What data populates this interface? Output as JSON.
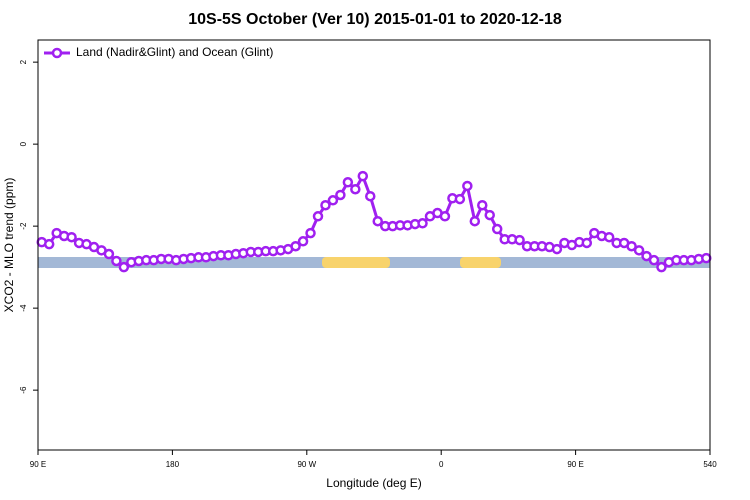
{
  "chart_data": {
    "type": "line",
    "title": "10S-5S October (Ver 10)   2015-01-01 to 2020-12-18",
    "xlabel": "Longitude (deg E)",
    "ylabel": "XCO2 - MLO trend (ppm)",
    "xlim": [
      90,
      540
    ],
    "ylim": [
      -7.46,
      2.54
    ],
    "xticks": [
      {
        "value": 90,
        "label": "90 E"
      },
      180,
      {
        "value": 270,
        "label": "90 W"
      },
      {
        "value": 360,
        "label": "0"
      },
      {
        "value": 450,
        "label": "90 E"
      },
      540
    ],
    "yticks": [
      2,
      0,
      -2,
      -4,
      -6
    ],
    "legend": "top-left",
    "x": [
      92.5,
      97.5,
      102.5,
      107.5,
      112.5,
      117.5,
      122.5,
      127.5,
      132.5,
      137.5,
      142.5,
      147.5,
      152.5,
      157.5,
      162.5,
      167.5,
      172.5,
      177.5,
      182.5,
      187.5,
      192.5,
      197.5,
      202.5,
      207.5,
      212.5,
      217.5,
      222.5,
      227.5,
      232.5,
      237.5,
      242.5,
      247.5,
      252.5,
      257.5,
      262.5,
      267.5,
      272.5,
      277.5,
      282.5,
      287.5,
      292.5,
      297.5,
      302.5,
      307.5,
      312.5,
      317.5,
      322.5,
      327.5,
      332.5,
      337.5,
      342.5,
      347.5,
      352.5,
      357.5,
      362.5,
      367.5,
      372.5,
      377.5,
      382.5,
      387.5,
      392.5,
      397.5,
      402.5,
      407.5,
      412.5,
      417.5,
      422.5,
      427.5,
      432.5,
      437.5,
      442.5,
      447.5,
      452.5,
      457.5,
      462.5,
      467.5,
      472.5,
      477.5,
      482.5,
      487.5,
      492.5,
      497.5,
      502.5,
      507.5,
      512.5,
      517.5,
      522.5,
      527.5,
      532.5,
      537.5
    ],
    "series": [
      {
        "name": "Land (Nadir&Glint) and Ocean (Glint)",
        "color": "#a020f0",
        "values": [
          -2.39,
          -2.44,
          -2.17,
          -2.24,
          -2.27,
          -2.41,
          -2.44,
          -2.51,
          -2.59,
          -2.68,
          -2.85,
          -3.0,
          -2.88,
          -2.85,
          -2.83,
          -2.83,
          -2.8,
          -2.8,
          -2.83,
          -2.8,
          -2.78,
          -2.76,
          -2.76,
          -2.73,
          -2.71,
          -2.71,
          -2.68,
          -2.66,
          -2.63,
          -2.63,
          -2.61,
          -2.61,
          -2.59,
          -2.56,
          -2.49,
          -2.37,
          -2.17,
          -1.76,
          -1.49,
          -1.37,
          -1.24,
          -0.93,
          -1.1,
          -0.78,
          -1.27,
          -1.88,
          -2.0,
          -2.0,
          -1.98,
          -1.98,
          -1.95,
          -1.93,
          -1.76,
          -1.68,
          -1.76,
          -1.32,
          -1.34,
          -1.02,
          -1.88,
          -1.49,
          -1.73,
          -2.07,
          -2.32,
          -2.32,
          -2.34,
          -2.49,
          -2.49,
          -2.49,
          -2.51,
          -2.56,
          -2.41,
          -2.46,
          -2.39,
          -2.41,
          -2.17,
          -2.24,
          -2.27,
          -2.41,
          -2.41,
          -2.49,
          -2.59,
          -2.73,
          -2.83,
          -3.0,
          -2.88,
          -2.83,
          -2.83,
          -2.83,
          -2.8,
          -2.78
        ]
      }
    ]
  }
}
